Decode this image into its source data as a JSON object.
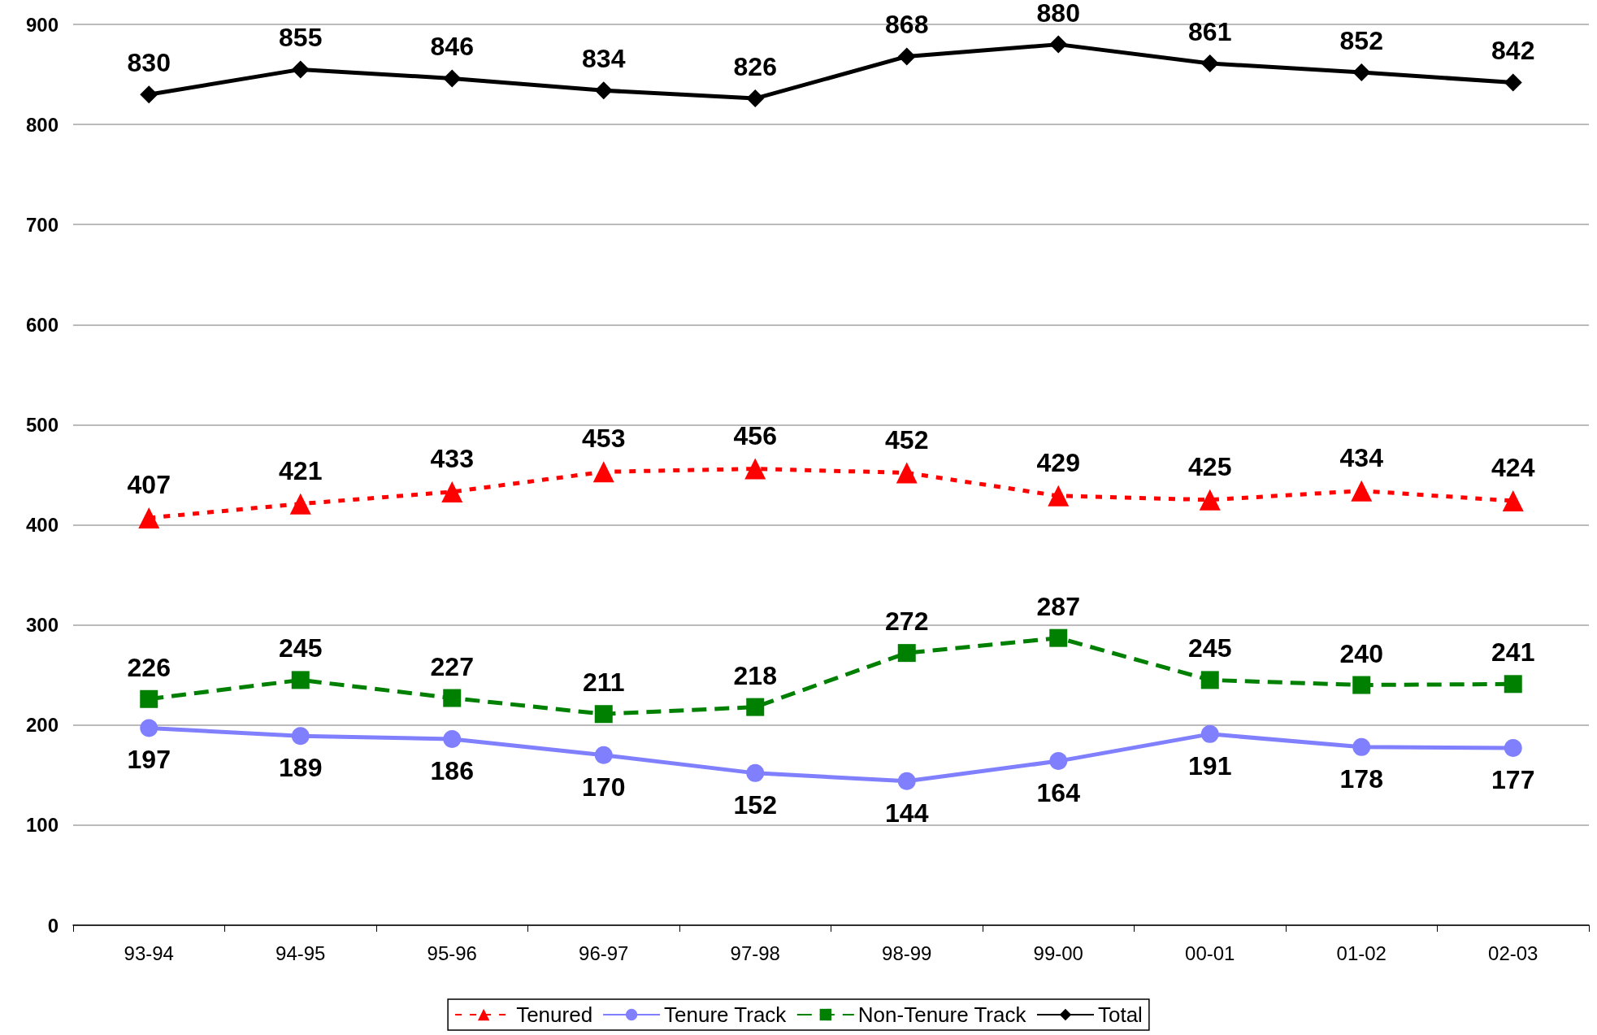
{
  "chart_data": {
    "type": "line",
    "categories": [
      "93-94",
      "94-95",
      "95-96",
      "96-97",
      "97-98",
      "98-99",
      "99-00",
      "00-01",
      "01-02",
      "02-03"
    ],
    "series": [
      {
        "name": "Tenured",
        "color": "#ff0000",
        "marker": "triangle",
        "line_style": "dotted",
        "values": [
          407,
          421,
          433,
          453,
          456,
          452,
          429,
          425,
          434,
          424
        ]
      },
      {
        "name": "Tenure Track",
        "color": "#8080ff",
        "marker": "circle",
        "line_style": "solid",
        "values": [
          197,
          189,
          186,
          170,
          152,
          144,
          164,
          191,
          178,
          177
        ]
      },
      {
        "name": "Non-Tenure Track",
        "color": "#008000",
        "marker": "square",
        "line_style": "dashed",
        "values": [
          226,
          245,
          227,
          211,
          218,
          272,
          287,
          245,
          240,
          241
        ]
      },
      {
        "name": "Total",
        "color": "#000000",
        "marker": "diamond",
        "line_style": "solid",
        "values": [
          830,
          855,
          846,
          834,
          826,
          868,
          880,
          861,
          852,
          842
        ]
      }
    ],
    "ylim": [
      0,
      900
    ],
    "yticks": [
      0,
      100,
      200,
      300,
      400,
      500,
      600,
      700,
      800,
      900
    ],
    "grid": "y",
    "legend": "bottom",
    "data_labels": true
  }
}
